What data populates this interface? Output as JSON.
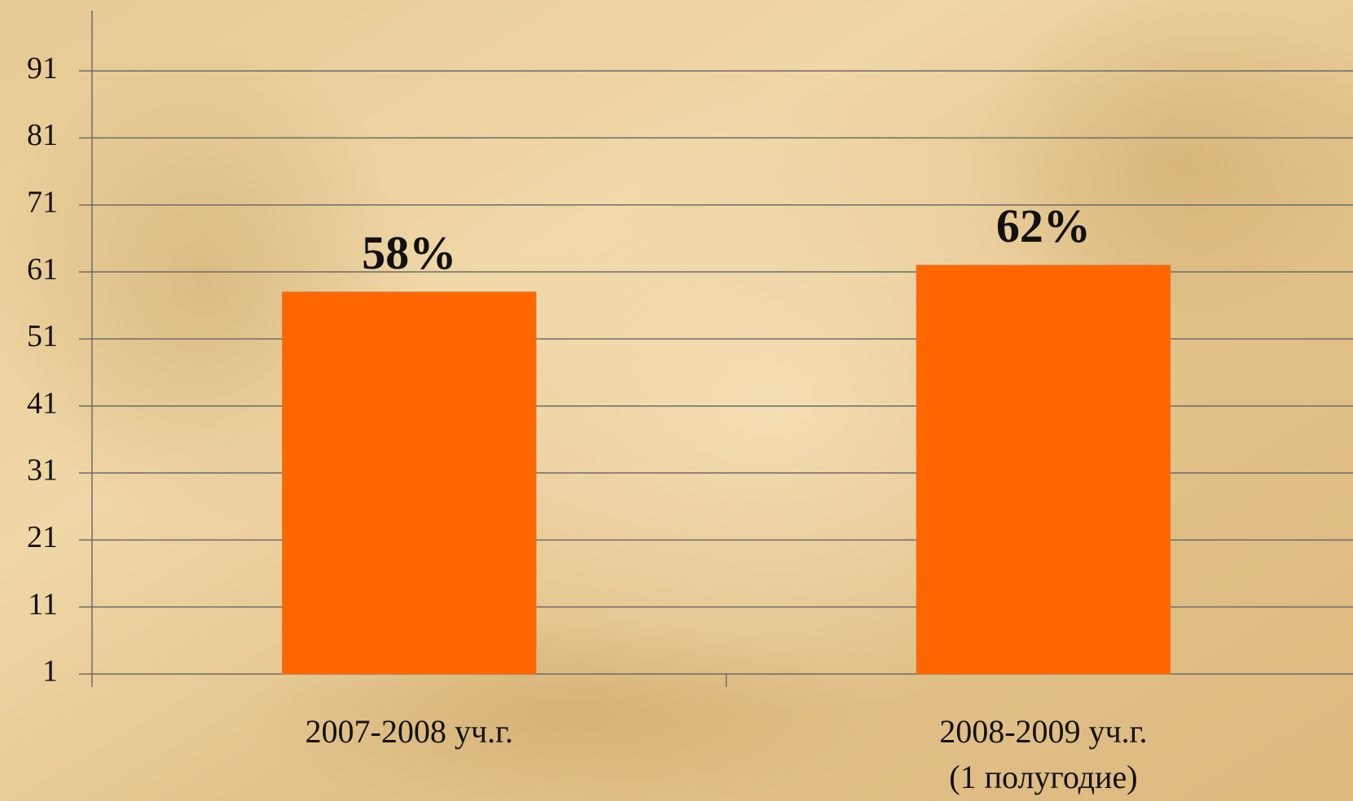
{
  "chart_data": {
    "type": "bar",
    "categories": [
      "2007-2008 уч.г.",
      "2008-2009 уч.г.\n(1 полугодие)"
    ],
    "values": [
      58,
      62
    ],
    "value_labels": [
      "58%",
      "62%"
    ],
    "color": "#ff6600",
    "ylim": [
      1,
      100
    ],
    "yticks": [
      1,
      11,
      21,
      31,
      41,
      51,
      61,
      71,
      81,
      91
    ],
    "grid": true
  }
}
